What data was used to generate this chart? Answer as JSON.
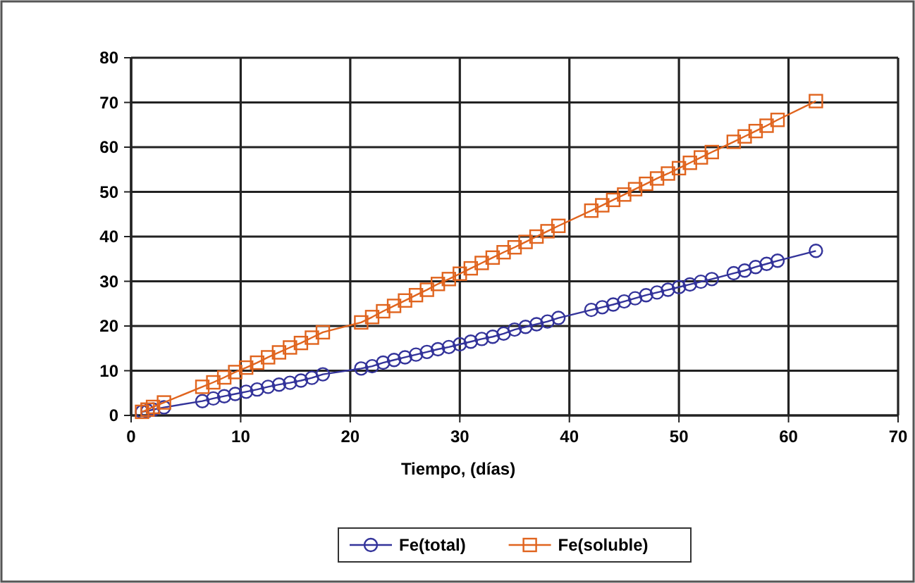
{
  "chart_data": {
    "type": "line",
    "xlabel": "Tiempo, (días)",
    "xlim": [
      0,
      70
    ],
    "xticks": [
      0,
      10,
      20,
      30,
      40,
      50,
      60,
      70
    ],
    "ylim": [
      0,
      80
    ],
    "yticks": [
      0,
      10,
      20,
      30,
      40,
      50,
      60,
      70,
      80
    ],
    "grid": true,
    "legend": "bottom",
    "x": [
      1,
      1.5,
      2,
      3,
      6.5,
      7.5,
      8.5,
      9.5,
      10.5,
      11.5,
      12.5,
      13.5,
      14.5,
      15.5,
      16.5,
      17.5,
      21,
      22,
      23,
      24,
      25,
      26,
      27,
      28,
      29,
      30,
      31,
      32,
      33,
      34,
      35,
      36,
      37,
      38,
      39,
      42,
      43,
      44,
      45,
      46,
      47,
      48,
      49,
      50,
      51,
      52,
      53,
      55,
      56,
      57,
      58,
      59,
      62.5
    ],
    "series": [
      {
        "name": "Fe(total)",
        "color": "#33339a",
        "marker": "circle",
        "values": [
          0.8,
          1,
          1.3,
          1.8,
          3.2,
          3.8,
          4.3,
          4.8,
          5.3,
          5.8,
          6.4,
          6.9,
          7.3,
          7.8,
          8.4,
          9.2,
          10.5,
          11,
          11.8,
          12.4,
          13,
          13.6,
          14.2,
          14.8,
          15.3,
          15.9,
          16.5,
          17.1,
          17.6,
          18.3,
          19.2,
          19.8,
          20.4,
          21,
          21.8,
          23.6,
          24.2,
          24.8,
          25.5,
          26.2,
          26.9,
          27.5,
          28.1,
          28.7,
          29.3,
          29.9,
          30.5,
          31.8,
          32.4,
          33.2,
          33.9,
          34.6,
          36.8
        ]
      },
      {
        "name": "Fe(soluble)",
        "color": "#e0641e",
        "marker": "square",
        "values": [
          0.8,
          1.3,
          1.9,
          2.9,
          6.4,
          7.4,
          8.5,
          9.7,
          10.7,
          11.8,
          13,
          14.1,
          15.2,
          16.2,
          17.4,
          18.6,
          20.8,
          22,
          23.3,
          24.5,
          25.7,
          26.9,
          28.1,
          29.4,
          30.5,
          31.7,
          32.9,
          34.1,
          35.3,
          36.5,
          37.6,
          38.8,
          40,
          41.2,
          42.4,
          45.8,
          47,
          48.2,
          49.4,
          50.6,
          51.8,
          53,
          54.1,
          55.3,
          56.5,
          57.7,
          58.9,
          61.2,
          62.4,
          63.6,
          64.8,
          66.1,
          70.3
        ]
      }
    ]
  }
}
